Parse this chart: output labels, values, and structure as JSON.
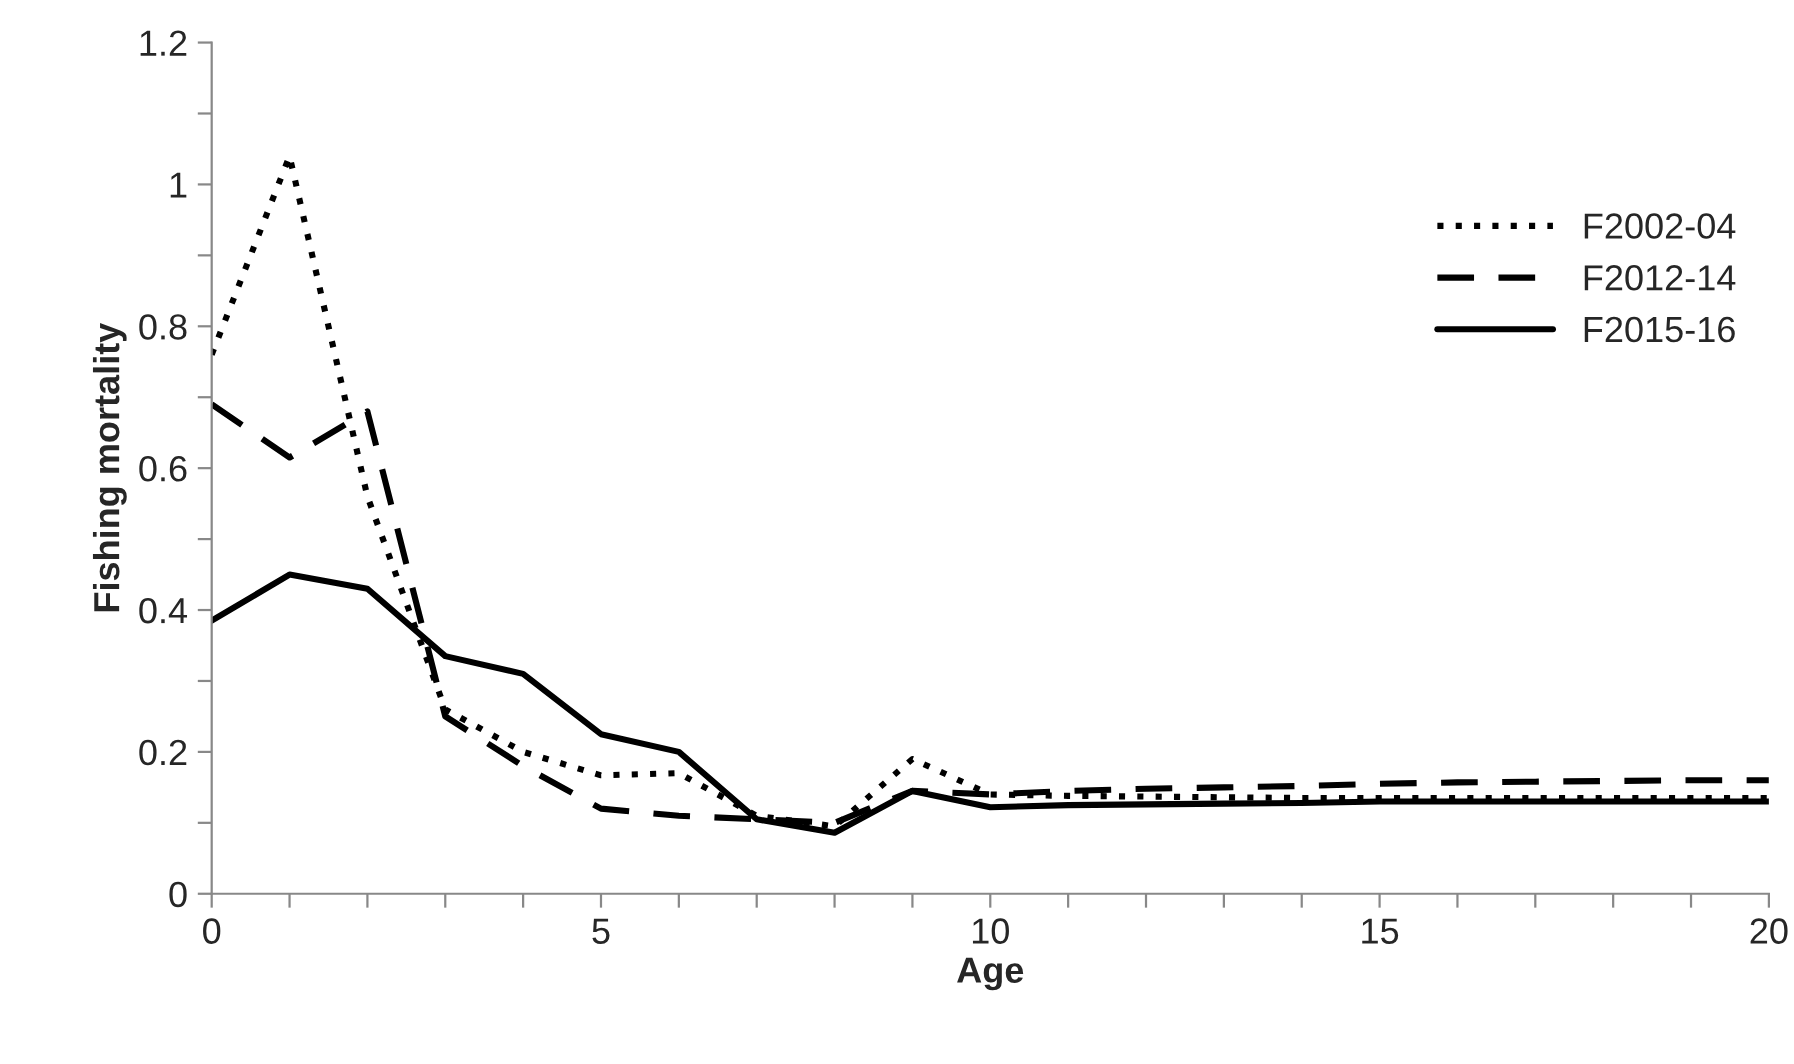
{
  "chart_data": {
    "type": "line",
    "xlabel": "Age",
    "ylabel": "Fishing mortality",
    "x": [
      0,
      1,
      2,
      3,
      4,
      5,
      6,
      7,
      8,
      9,
      10,
      11,
      12,
      13,
      14,
      15,
      16,
      17,
      18,
      19,
      20
    ],
    "series": [
      {
        "name": "F2002-04",
        "color": "#000000",
        "line_style": "dotted",
        "values": [
          0.76,
          1.04,
          0.56,
          0.26,
          0.2,
          0.167,
          0.17,
          0.11,
          0.095,
          0.19,
          0.14,
          0.138,
          0.137,
          0.136,
          0.135,
          0.135,
          0.135,
          0.135,
          0.135,
          0.135,
          0.135
        ]
      },
      {
        "name": "F2012-14",
        "color": "#000000",
        "line_style": "dashed",
        "values": [
          0.69,
          0.615,
          0.68,
          0.25,
          0.18,
          0.12,
          0.11,
          0.105,
          0.1,
          0.145,
          0.14,
          0.145,
          0.148,
          0.15,
          0.152,
          0.155,
          0.157,
          0.158,
          0.159,
          0.16,
          0.16
        ]
      },
      {
        "name": "F2015-16",
        "color": "#000000",
        "line_style": "solid",
        "values": [
          0.385,
          0.45,
          0.43,
          0.335,
          0.31,
          0.225,
          0.2,
          0.105,
          0.086,
          0.145,
          0.122,
          0.125,
          0.126,
          0.127,
          0.128,
          0.13,
          0.13,
          0.13,
          0.13,
          0.13,
          0.13
        ]
      }
    ],
    "xlim": [
      0,
      20
    ],
    "ylim": [
      0,
      1.2
    ],
    "xticks": [
      0,
      {
        "value": 1,
        "label": null
      },
      {
        "value": 2,
        "label": null
      },
      {
        "value": 3,
        "label": null
      },
      {
        "value": 4,
        "label": null
      },
      5,
      {
        "value": 6,
        "label": null
      },
      {
        "value": 7,
        "label": null
      },
      {
        "value": 8,
        "label": null
      },
      {
        "value": 9,
        "label": null
      },
      10,
      {
        "value": 11,
        "label": null
      },
      {
        "value": 12,
        "label": null
      },
      {
        "value": 13,
        "label": null
      },
      {
        "value": 14,
        "label": null
      },
      15,
      {
        "value": 16,
        "label": null
      },
      {
        "value": 17,
        "label": null
      },
      {
        "value": 18,
        "label": null
      },
      {
        "value": 19,
        "label": null
      },
      20
    ],
    "yticks": [
      0,
      {
        "value": 0.1,
        "label": null
      },
      0.2,
      {
        "value": 0.3,
        "label": null
      },
      0.4,
      {
        "value": 0.5,
        "label": null
      },
      0.6,
      {
        "value": 0.7,
        "label": null
      },
      0.8,
      {
        "value": 0.9,
        "label": null
      },
      1,
      {
        "value": 1.1,
        "label": null
      },
      1.2
    ],
    "grid": false,
    "legend": "right",
    "marker": "none"
  }
}
